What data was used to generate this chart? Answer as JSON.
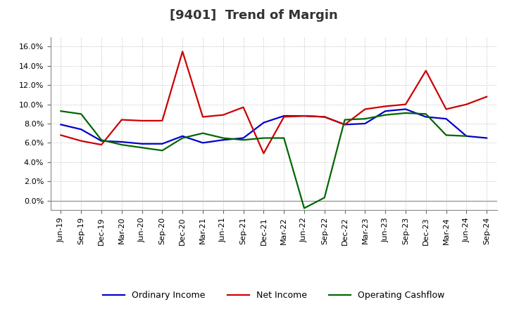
{
  "title": "[9401]  Trend of Margin",
  "x_labels": [
    "Jun-19",
    "Sep-19",
    "Dec-19",
    "Mar-20",
    "Jun-20",
    "Sep-20",
    "Dec-20",
    "Mar-21",
    "Jun-21",
    "Sep-21",
    "Dec-21",
    "Mar-22",
    "Jun-22",
    "Sep-22",
    "Dec-22",
    "Mar-23",
    "Jun-23",
    "Sep-23",
    "Dec-23",
    "Mar-24",
    "Jun-24",
    "Sep-24"
  ],
  "ordinary_income": [
    7.9,
    7.4,
    6.2,
    6.1,
    5.9,
    5.9,
    6.7,
    6.0,
    6.3,
    6.5,
    8.1,
    8.8,
    8.8,
    8.7,
    7.9,
    8.0,
    9.3,
    9.5,
    8.7,
    8.5,
    6.7,
    6.5
  ],
  "net_income": [
    6.8,
    6.2,
    5.8,
    8.4,
    8.3,
    8.3,
    15.5,
    8.7,
    8.9,
    9.7,
    4.9,
    8.7,
    8.8,
    8.7,
    7.9,
    9.5,
    9.8,
    10.0,
    13.5,
    9.5,
    10.0,
    10.8
  ],
  "operating_cashflow": [
    9.3,
    9.0,
    6.3,
    5.8,
    5.5,
    5.2,
    6.5,
    7.0,
    6.5,
    6.3,
    6.5,
    6.5,
    -0.8,
    0.3,
    8.4,
    8.5,
    8.9,
    9.1,
    9.0,
    6.8,
    6.7,
    null
  ],
  "ylim": [
    -1.0,
    17.0
  ],
  "yticks": [
    0.0,
    2.0,
    4.0,
    6.0,
    8.0,
    10.0,
    12.0,
    14.0,
    16.0
  ],
  "colors": {
    "ordinary_income": "#0000cc",
    "net_income": "#cc0000",
    "operating_cashflow": "#006600"
  },
  "legend": {
    "ordinary_income": "Ordinary Income",
    "net_income": "Net Income",
    "operating_cashflow": "Operating Cashflow"
  },
  "background_color": "#ffffff",
  "grid_color": "#bbbbbb",
  "line_width": 1.6,
  "title_fontsize": 13,
  "tick_fontsize": 8,
  "legend_fontsize": 9
}
